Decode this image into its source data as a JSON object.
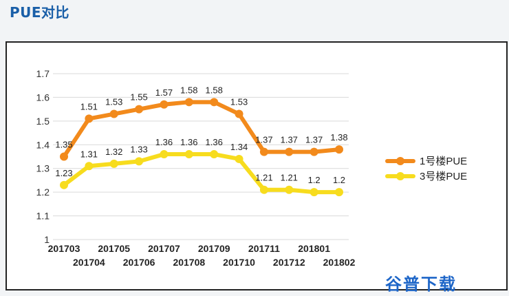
{
  "page": {
    "title": "PUE对比"
  },
  "watermark": "谷普下载",
  "chart_data": {
    "type": "line",
    "x": [
      "201703",
      "201704",
      "201705",
      "201706",
      "201707",
      "201708",
      "201709",
      "201710",
      "201711",
      "201712",
      "201801",
      "201802"
    ],
    "ylim": [
      1,
      1.7
    ],
    "yticks": [
      "1",
      "1.1",
      "1.2",
      "1.3",
      "1.4",
      "1.5",
      "1.6",
      "1.7"
    ],
    "grid": true,
    "legend": "right",
    "series": [
      {
        "name": "1号楼PUE",
        "color": "#f28a1c",
        "values": [
          1.35,
          1.51,
          1.53,
          1.55,
          1.57,
          1.58,
          1.58,
          1.53,
          1.37,
          1.37,
          1.37,
          1.38
        ],
        "labels": [
          "1.35",
          "1.51",
          "1.53",
          "1.55",
          "1.57",
          "1.58",
          "1.58",
          "1.53",
          "1.37",
          "1.37",
          "1.37",
          "1.38"
        ]
      },
      {
        "name": "3号楼PUE",
        "color": "#f7dc1e",
        "values": [
          1.23,
          1.31,
          1.32,
          1.33,
          1.36,
          1.36,
          1.36,
          1.34,
          1.21,
          1.21,
          1.2,
          1.2
        ],
        "labels": [
          "1.23",
          "1.31",
          "1.32",
          "1.33",
          "1.36",
          "1.36",
          "1.36",
          "1.34",
          "1.21",
          "1.21",
          "1.2",
          "1.2"
        ]
      }
    ]
  }
}
